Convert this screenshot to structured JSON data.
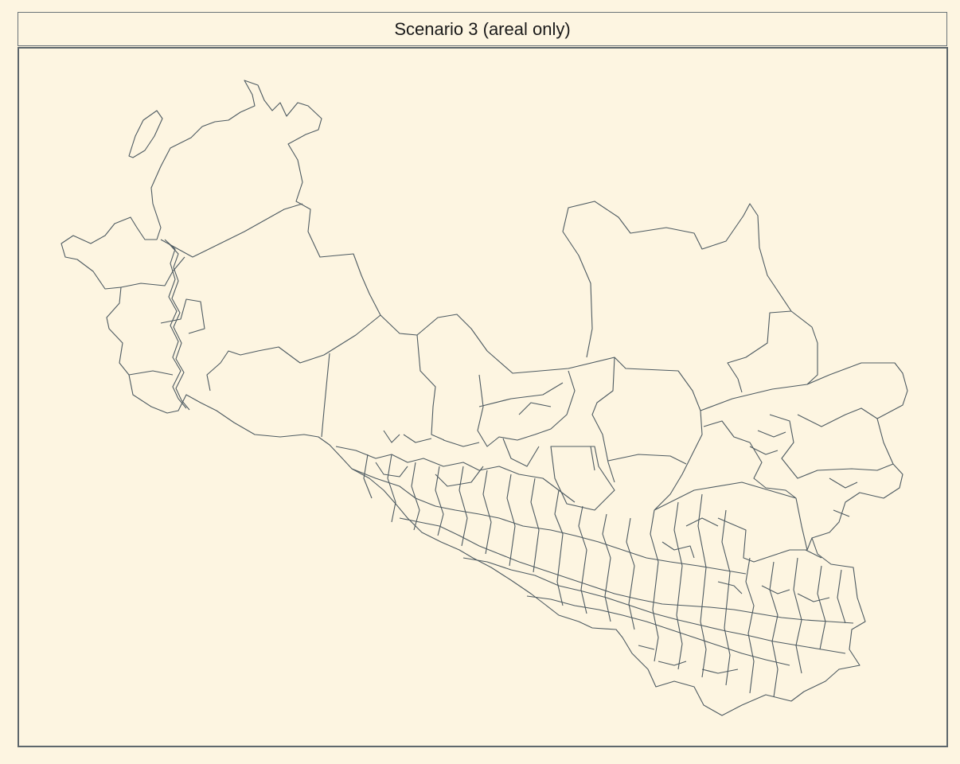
{
  "title": "Scenario 3 (areal only)",
  "colors": {
    "background": "#fdf5e1",
    "boundary": "#4d5a61",
    "frame": "#5e676c"
  }
}
